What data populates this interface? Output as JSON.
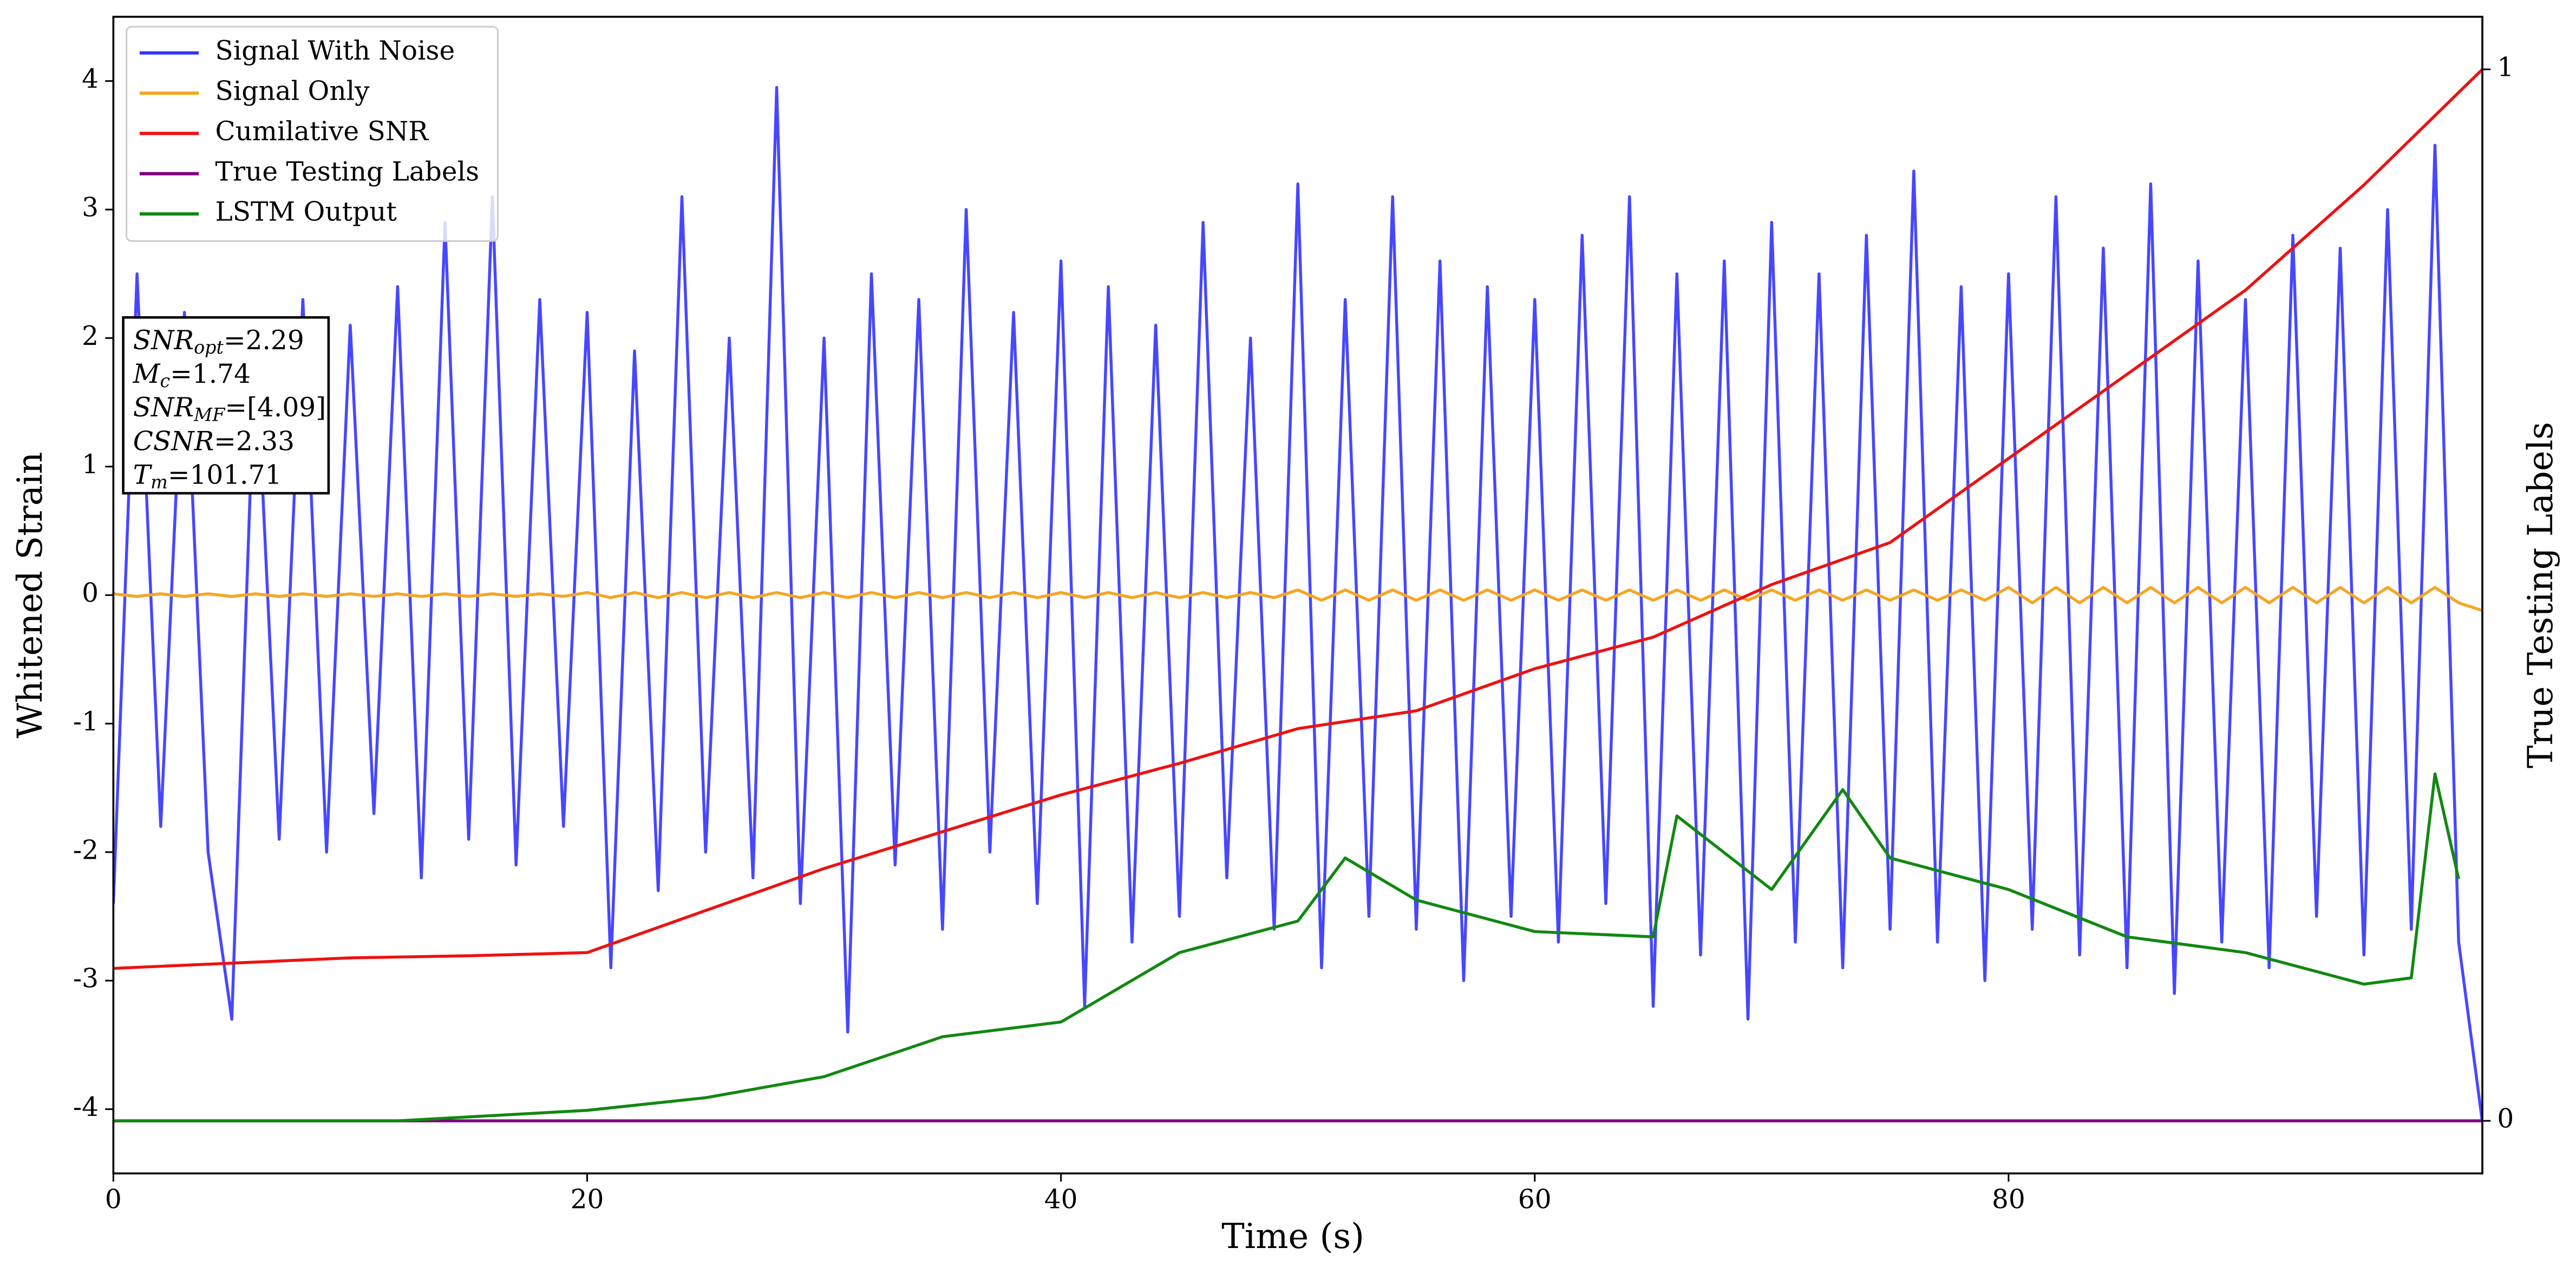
{
  "chart_data": {
    "type": "line",
    "xlabel": "Time (s)",
    "ylabel": "Whitened Strain",
    "y2label": "True Testing Labels",
    "xlim": [
      0,
      100
    ],
    "ylim": [
      -4.5,
      4.5
    ],
    "y2lim": [
      -0.05,
      1.05
    ],
    "xticks": [
      0,
      20,
      40,
      60,
      80
    ],
    "yticks": [
      -4,
      -3,
      -2,
      -1,
      0,
      1,
      2,
      3,
      4
    ],
    "y2ticks": [
      0,
      1
    ],
    "legend": "upper left",
    "annotation": [
      {
        "main": "SNR",
        "sub": "opt",
        "rest": "=2.29"
      },
      {
        "main": "M",
        "sub": "c",
        "rest": "=1.74"
      },
      {
        "main": "SNR",
        "sub": "MF",
        "rest": "=[4.09]"
      },
      {
        "main": "CSNR",
        "sub": "",
        "rest": "=2.33"
      },
      {
        "main": "T",
        "sub": "m",
        "rest": "=101.71"
      }
    ],
    "series": [
      {
        "name": "Signal With Noise",
        "color": "#3333ff",
        "x": [
          0,
          1,
          2,
          3,
          4,
          5,
          6,
          7,
          8,
          9,
          10,
          11,
          12,
          13,
          14,
          15,
          16,
          17,
          18,
          19,
          20,
          21,
          22,
          23,
          24,
          25,
          26,
          27,
          28,
          29,
          30,
          31,
          32,
          33,
          34,
          35,
          36,
          37,
          38,
          39,
          40,
          41,
          42,
          43,
          44,
          45,
          46,
          47,
          48,
          49,
          50,
          51,
          52,
          53,
          54,
          55,
          56,
          57,
          58,
          59,
          60,
          61,
          62,
          63,
          64,
          65,
          66,
          67,
          68,
          69,
          70,
          71,
          72,
          73,
          74,
          75,
          76,
          77,
          78,
          79,
          80,
          81,
          82,
          83,
          84,
          85,
          86,
          87,
          88,
          89,
          90,
          91,
          92,
          93,
          94,
          95,
          96,
          97,
          98,
          99,
          100
        ],
        "values": [
          -2.4,
          2.5,
          -1.8,
          2.2,
          -2.0,
          -3.3,
          2.0,
          -1.9,
          2.3,
          -2.0,
          2.1,
          -1.7,
          2.4,
          -2.2,
          2.9,
          -1.9,
          3.1,
          -2.1,
          2.3,
          -1.8,
          2.2,
          -2.9,
          1.9,
          -2.3,
          3.1,
          -2.0,
          2.0,
          -2.2,
          3.95,
          -2.4,
          2.0,
          -3.4,
          2.5,
          -2.1,
          2.3,
          -2.6,
          3.0,
          -2.0,
          2.2,
          -2.4,
          2.6,
          -3.2,
          2.4,
          -2.7,
          2.1,
          -2.5,
          2.9,
          -2.2,
          2.0,
          -2.6,
          3.2,
          -2.9,
          2.3,
          -2.5,
          3.1,
          -2.6,
          2.6,
          -3.0,
          2.4,
          -2.5,
          2.3,
          -2.7,
          2.8,
          -2.4,
          3.1,
          -3.2,
          2.5,
          -2.8,
          2.6,
          -3.3,
          2.9,
          -2.7,
          2.5,
          -2.9,
          2.8,
          -2.6,
          3.3,
          -2.7,
          2.4,
          -3.0,
          2.5,
          -2.6,
          3.1,
          -2.8,
          2.7,
          -2.9,
          3.2,
          -3.1,
          2.6,
          -2.7,
          2.3,
          -2.9,
          2.8,
          -2.5,
          2.7,
          -2.8,
          3.0,
          -2.6,
          3.5,
          -2.7,
          -4.1
        ]
      },
      {
        "name": "Signal Only",
        "color": "#f5a623",
        "x": [
          0,
          1,
          2,
          3,
          4,
          5,
          6,
          7,
          8,
          9,
          10,
          11,
          12,
          13,
          14,
          15,
          16,
          17,
          18,
          19,
          20,
          21,
          22,
          23,
          24,
          25,
          26,
          27,
          28,
          29,
          30,
          31,
          32,
          33,
          34,
          35,
          36,
          37,
          38,
          39,
          40,
          41,
          42,
          43,
          44,
          45,
          46,
          47,
          48,
          49,
          50,
          51,
          52,
          53,
          54,
          55,
          56,
          57,
          58,
          59,
          60,
          61,
          62,
          63,
          64,
          65,
          66,
          67,
          68,
          69,
          70,
          71,
          72,
          73,
          74,
          75,
          76,
          77,
          78,
          79,
          80,
          81,
          82,
          83,
          84,
          85,
          86,
          87,
          88,
          89,
          90,
          91,
          92,
          93,
          94,
          95,
          96,
          97,
          98,
          99,
          100
        ],
        "values": [
          0.01,
          -0.01,
          0.01,
          -0.01,
          0.01,
          -0.01,
          0.01,
          -0.01,
          0.01,
          -0.01,
          0.01,
          -0.01,
          0.01,
          -0.01,
          0.01,
          -0.01,
          0.01,
          -0.01,
          0.01,
          -0.01,
          0.02,
          -0.02,
          0.02,
          -0.02,
          0.02,
          -0.02,
          0.02,
          -0.02,
          0.02,
          -0.02,
          0.02,
          -0.02,
          0.02,
          -0.02,
          0.02,
          -0.02,
          0.02,
          -0.02,
          0.02,
          -0.02,
          0.02,
          -0.02,
          0.02,
          -0.02,
          0.02,
          -0.02,
          0.02,
          -0.02,
          0.02,
          -0.02,
          0.04,
          -0.04,
          0.04,
          -0.04,
          0.04,
          -0.04,
          0.04,
          -0.04,
          0.04,
          -0.04,
          0.04,
          -0.04,
          0.04,
          -0.04,
          0.04,
          -0.04,
          0.04,
          -0.04,
          0.04,
          -0.04,
          0.04,
          -0.04,
          0.04,
          -0.04,
          0.04,
          -0.04,
          0.04,
          -0.04,
          0.04,
          -0.04,
          0.06,
          -0.06,
          0.06,
          -0.06,
          0.06,
          -0.06,
          0.06,
          -0.06,
          0.06,
          -0.06,
          0.06,
          -0.06,
          0.06,
          -0.06,
          0.06,
          -0.06,
          0.06,
          -0.06,
          0.06,
          -0.06,
          -0.12
        ]
      },
      {
        "name": "Cumilative SNR",
        "color": "#ee1111",
        "axis": "y2",
        "x": [
          0,
          5,
          10,
          15,
          20,
          25,
          30,
          35,
          40,
          45,
          50,
          55,
          60,
          65,
          70,
          75,
          80,
          85,
          90,
          95,
          100
        ],
        "values": [
          0.145,
          0.15,
          0.155,
          0.157,
          0.16,
          0.2,
          0.24,
          0.275,
          0.31,
          0.34,
          0.373,
          0.39,
          0.43,
          0.46,
          0.51,
          0.55,
          0.63,
          0.71,
          0.79,
          0.89,
          1.0
        ]
      },
      {
        "name": "True Testing Labels",
        "color": "#800080",
        "axis": "y2",
        "x": [
          0,
          100
        ],
        "values": [
          0,
          0
        ]
      },
      {
        "name": "LSTM Output",
        "color": "#118811",
        "axis": "y2",
        "x": [
          0,
          12,
          20,
          25,
          30,
          35,
          40,
          45,
          50,
          52,
          55,
          60,
          65,
          66,
          70,
          73,
          75,
          80,
          85,
          90,
          95,
          97,
          98,
          99
        ],
        "values": [
          0,
          0,
          0.01,
          0.022,
          0.042,
          0.08,
          0.094,
          0.16,
          0.19,
          0.25,
          0.21,
          0.18,
          0.175,
          0.29,
          0.22,
          0.315,
          0.25,
          0.22,
          0.175,
          0.16,
          0.13,
          0.136,
          0.33,
          0.23
        ]
      }
    ]
  }
}
